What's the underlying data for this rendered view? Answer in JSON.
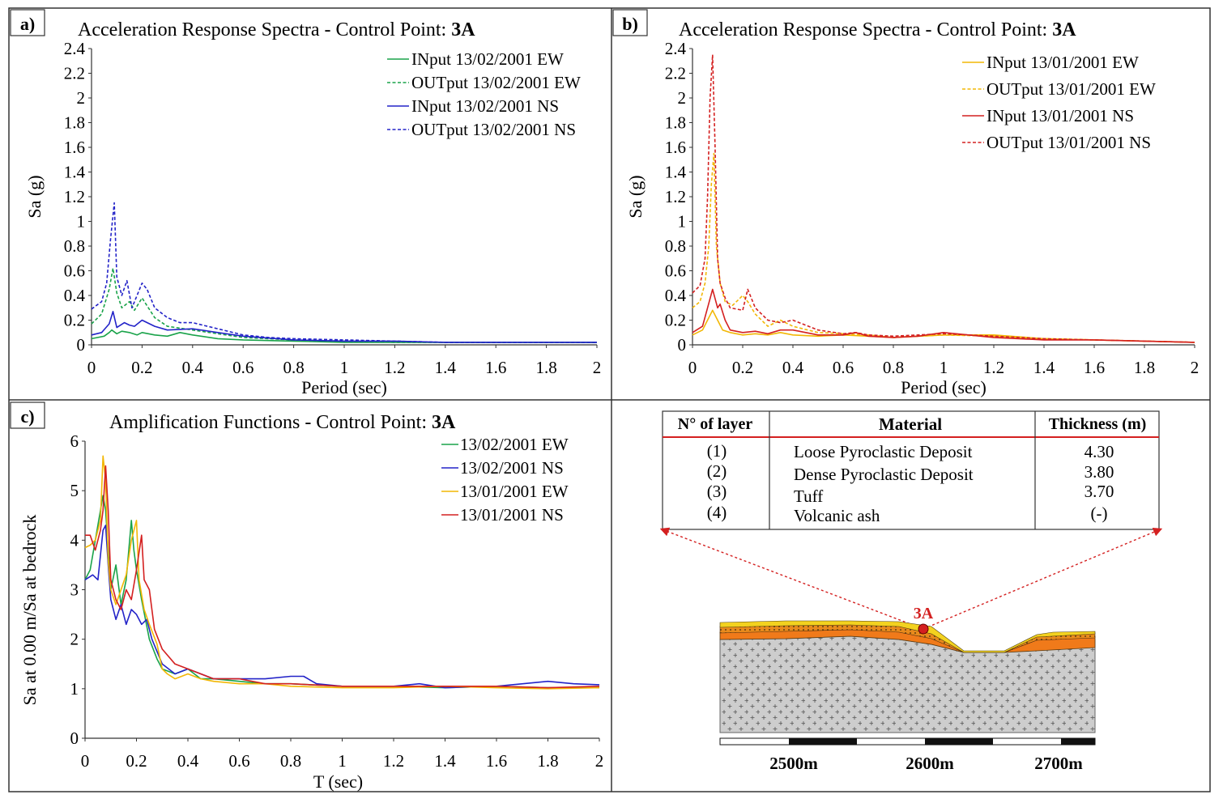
{
  "panels": {
    "a": {
      "letter": "a)",
      "title": "Acceleration Response Spectra - Control Point:",
      "title_bold": "3A"
    },
    "b": {
      "letter": "b)",
      "title": "Acceleration Response Spectra - Control Point:",
      "title_bold": "3A"
    },
    "c": {
      "letter": "c)",
      "title": "Amplification Functions - Control Point:",
      "title_bold": "3A"
    }
  },
  "colors": {
    "green": "#1aa34a",
    "blue": "#2323c8",
    "yellow": "#f2b705",
    "red": "#d42020",
    "orange": "#f07a1a",
    "gray": "#c8c8c8"
  },
  "chart_data": [
    {
      "id": "a",
      "type": "line",
      "title": "Acceleration Response Spectra - Control Point: 3A",
      "xlabel": "Period (sec)",
      "ylabel": "Sa (g)",
      "xlim": [
        0,
        2
      ],
      "ylim": [
        0,
        2.4
      ],
      "xticks": [
        0,
        0.2,
        0.4,
        0.6,
        0.8,
        1,
        1.2,
        1.4,
        1.6,
        1.8,
        2
      ],
      "yticks": [
        0,
        0.2,
        0.4,
        0.6,
        0.8,
        1,
        1.2,
        1.4,
        1.6,
        1.8,
        2,
        2.2,
        2.4
      ],
      "legend_position": "top-right",
      "series": [
        {
          "name": "INput 13/02/2001 EW",
          "color": "#1aa34a",
          "dash": false,
          "x": [
            0,
            0.05,
            0.07,
            0.08,
            0.1,
            0.12,
            0.15,
            0.18,
            0.2,
            0.25,
            0.3,
            0.35,
            0.4,
            0.5,
            0.6,
            0.8,
            1,
            1.2,
            1.4,
            1.6,
            1.8,
            2
          ],
          "y": [
            0.05,
            0.07,
            0.1,
            0.12,
            0.09,
            0.11,
            0.1,
            0.08,
            0.1,
            0.08,
            0.07,
            0.1,
            0.08,
            0.05,
            0.04,
            0.03,
            0.02,
            0.02,
            0.02,
            0.02,
            0.02,
            0.02
          ]
        },
        {
          "name": "OUTput 13/02/2001 EW",
          "color": "#1aa34a",
          "dash": true,
          "x": [
            0,
            0.04,
            0.07,
            0.085,
            0.1,
            0.12,
            0.15,
            0.17,
            0.2,
            0.25,
            0.3,
            0.4,
            0.5,
            0.6,
            0.8,
            1,
            1.2,
            1.4,
            1.6,
            1.8,
            2
          ],
          "y": [
            0.17,
            0.25,
            0.45,
            0.62,
            0.42,
            0.3,
            0.35,
            0.28,
            0.38,
            0.22,
            0.15,
            0.12,
            0.09,
            0.06,
            0.04,
            0.03,
            0.02,
            0.02,
            0.02,
            0.02,
            0.02
          ]
        },
        {
          "name": "INput 13/02/2001 NS",
          "color": "#2323c8",
          "dash": false,
          "x": [
            0,
            0.04,
            0.07,
            0.085,
            0.1,
            0.13,
            0.15,
            0.17,
            0.2,
            0.25,
            0.3,
            0.4,
            0.5,
            0.6,
            0.8,
            1,
            1.1,
            1.2,
            1.4,
            1.6,
            1.8,
            2
          ],
          "y": [
            0.08,
            0.1,
            0.17,
            0.27,
            0.14,
            0.18,
            0.16,
            0.15,
            0.2,
            0.15,
            0.12,
            0.13,
            0.1,
            0.07,
            0.04,
            0.03,
            0.03,
            0.03,
            0.02,
            0.02,
            0.02,
            0.02
          ]
        },
        {
          "name": "OUTput 13/02/2001 NS",
          "color": "#2323c8",
          "dash": true,
          "x": [
            0,
            0.04,
            0.06,
            0.075,
            0.09,
            0.1,
            0.12,
            0.14,
            0.16,
            0.18,
            0.2,
            0.22,
            0.25,
            0.3,
            0.35,
            0.4,
            0.5,
            0.6,
            0.7,
            0.8,
            1,
            1.2,
            1.4,
            1.6,
            1.8,
            2
          ],
          "y": [
            0.29,
            0.35,
            0.5,
            0.85,
            1.15,
            0.55,
            0.4,
            0.52,
            0.3,
            0.4,
            0.5,
            0.45,
            0.3,
            0.22,
            0.18,
            0.18,
            0.13,
            0.08,
            0.06,
            0.05,
            0.04,
            0.03,
            0.02,
            0.02,
            0.02,
            0.02
          ]
        }
      ]
    },
    {
      "id": "b",
      "type": "line",
      "title": "Acceleration Response Spectra - Control Point: 3A",
      "xlabel": "Period (sec)",
      "ylabel": "Sa (g)",
      "xlim": [
        0,
        2
      ],
      "ylim": [
        0,
        2.4
      ],
      "xticks": [
        0,
        0.2,
        0.4,
        0.6,
        0.8,
        1,
        1.2,
        1.4,
        1.6,
        1.8,
        2
      ],
      "yticks": [
        0,
        0.2,
        0.4,
        0.6,
        0.8,
        1,
        1.2,
        1.4,
        1.6,
        1.8,
        2,
        2.2,
        2.4
      ],
      "legend_position": "top-right",
      "series": [
        {
          "name": "INput 13/01/2001 EW",
          "color": "#f2b705",
          "dash": false,
          "x": [
            0,
            0.04,
            0.06,
            0.08,
            0.1,
            0.12,
            0.15,
            0.2,
            0.25,
            0.3,
            0.35,
            0.4,
            0.5,
            0.6,
            0.7,
            0.8,
            1,
            1.2,
            1.4,
            1.6,
            1.8,
            2
          ],
          "y": [
            0.08,
            0.12,
            0.2,
            0.28,
            0.2,
            0.12,
            0.1,
            0.08,
            0.09,
            0.08,
            0.1,
            0.08,
            0.07,
            0.08,
            0.07,
            0.06,
            0.08,
            0.08,
            0.05,
            0.04,
            0.03,
            0.02
          ]
        },
        {
          "name": "OUTput 13/01/2001 EW",
          "color": "#f2b705",
          "dash": true,
          "x": [
            0,
            0.03,
            0.05,
            0.065,
            0.075,
            0.085,
            0.095,
            0.11,
            0.13,
            0.16,
            0.2,
            0.22,
            0.25,
            0.3,
            0.35,
            0.4,
            0.5,
            0.6,
            0.7,
            0.8,
            1,
            1.2,
            1.4,
            1.6,
            1.8,
            2
          ],
          "y": [
            0.3,
            0.35,
            0.5,
            0.8,
            1.3,
            1.55,
            0.8,
            0.5,
            0.35,
            0.32,
            0.4,
            0.35,
            0.25,
            0.15,
            0.2,
            0.15,
            0.1,
            0.09,
            0.08,
            0.06,
            0.08,
            0.07,
            0.05,
            0.04,
            0.03,
            0.02
          ]
        },
        {
          "name": "INput 13/01/2001 NS",
          "color": "#d42020",
          "dash": false,
          "x": [
            0,
            0.04,
            0.06,
            0.08,
            0.1,
            0.11,
            0.13,
            0.15,
            0.2,
            0.25,
            0.3,
            0.35,
            0.4,
            0.5,
            0.6,
            0.65,
            0.7,
            0.8,
            0.9,
            1,
            1.1,
            1.2,
            1.4,
            1.6,
            1.8,
            2
          ],
          "y": [
            0.1,
            0.15,
            0.3,
            0.45,
            0.3,
            0.33,
            0.2,
            0.12,
            0.1,
            0.11,
            0.09,
            0.12,
            0.12,
            0.08,
            0.08,
            0.1,
            0.07,
            0.06,
            0.07,
            0.1,
            0.08,
            0.06,
            0.04,
            0.04,
            0.03,
            0.02
          ]
        },
        {
          "name": "OUTput 13/01/2001 NS",
          "color": "#d42020",
          "dash": true,
          "x": [
            0,
            0.03,
            0.05,
            0.06,
            0.07,
            0.08,
            0.09,
            0.1,
            0.11,
            0.13,
            0.15,
            0.2,
            0.22,
            0.25,
            0.3,
            0.35,
            0.4,
            0.5,
            0.6,
            0.65,
            0.7,
            0.8,
            1,
            1.2,
            1.4,
            1.6,
            1.8,
            2
          ],
          "y": [
            0.42,
            0.48,
            0.7,
            1.2,
            2.0,
            2.35,
            1.6,
            0.7,
            0.5,
            0.38,
            0.3,
            0.28,
            0.45,
            0.3,
            0.2,
            0.18,
            0.2,
            0.12,
            0.09,
            0.1,
            0.08,
            0.07,
            0.09,
            0.07,
            0.05,
            0.04,
            0.03,
            0.02
          ]
        }
      ]
    },
    {
      "id": "c",
      "type": "line",
      "title": "Amplification Functions - Control Point: 3A",
      "xlabel": "T (sec)",
      "ylabel": "Sa at 0.00 m/Sa at bedrock",
      "xlim": [
        0,
        2
      ],
      "ylim": [
        0,
        6
      ],
      "xticks": [
        0,
        0.2,
        0.4,
        0.6,
        0.8,
        1,
        1.2,
        1.4,
        1.6,
        1.8,
        2
      ],
      "yticks": [
        0,
        1,
        2,
        3,
        4,
        5,
        6
      ],
      "legend_position": "top-right",
      "series": [
        {
          "name": "13/02/2001 EW",
          "color": "#1aa34a",
          "dash": false,
          "x": [
            0,
            0.02,
            0.04,
            0.06,
            0.07,
            0.08,
            0.09,
            0.1,
            0.12,
            0.14,
            0.16,
            0.18,
            0.19,
            0.2,
            0.22,
            0.25,
            0.28,
            0.3,
            0.35,
            0.4,
            0.45,
            0.5,
            0.6,
            0.7,
            0.8,
            1,
            1.2,
            1.4,
            1.6,
            1.8,
            2
          ],
          "y": [
            3.2,
            3.4,
            4.0,
            4.6,
            4.9,
            4.6,
            3.8,
            3.0,
            3.5,
            2.7,
            3.2,
            4.4,
            3.8,
            3.4,
            2.8,
            2.0,
            1.6,
            1.4,
            1.3,
            1.4,
            1.2,
            1.2,
            1.15,
            1.1,
            1.1,
            1.05,
            1.05,
            1.02,
            1.05,
            1.02,
            1.02
          ]
        },
        {
          "name": "13/02/2001 NS",
          "color": "#2323c8",
          "dash": false,
          "x": [
            0,
            0.03,
            0.05,
            0.07,
            0.08,
            0.09,
            0.1,
            0.12,
            0.14,
            0.16,
            0.18,
            0.2,
            0.22,
            0.24,
            0.26,
            0.3,
            0.35,
            0.4,
            0.45,
            0.5,
            0.6,
            0.7,
            0.8,
            0.85,
            0.9,
            1,
            1.2,
            1.3,
            1.4,
            1.6,
            1.8,
            1.9,
            2
          ],
          "y": [
            3.2,
            3.3,
            3.2,
            4.2,
            4.3,
            3.5,
            2.8,
            2.4,
            2.7,
            2.3,
            2.6,
            2.5,
            2.3,
            2.4,
            2.0,
            1.5,
            1.3,
            1.4,
            1.3,
            1.2,
            1.2,
            1.2,
            1.25,
            1.25,
            1.1,
            1.05,
            1.05,
            1.1,
            1.02,
            1.05,
            1.15,
            1.1,
            1.08
          ]
        },
        {
          "name": "13/01/2001 EW",
          "color": "#f2b705",
          "dash": false,
          "x": [
            0,
            0.02,
            0.04,
            0.06,
            0.07,
            0.08,
            0.09,
            0.1,
            0.12,
            0.14,
            0.16,
            0.18,
            0.2,
            0.21,
            0.23,
            0.25,
            0.28,
            0.3,
            0.32,
            0.35,
            0.4,
            0.45,
            0.5,
            0.6,
            0.7,
            0.8,
            1,
            1.2,
            1.4,
            1.6,
            1.8,
            2
          ],
          "y": [
            3.85,
            3.9,
            4.0,
            4.4,
            5.7,
            5.2,
            3.6,
            3.0,
            2.7,
            3.0,
            3.3,
            4.0,
            4.4,
            3.2,
            2.6,
            2.3,
            1.9,
            1.4,
            1.3,
            1.2,
            1.3,
            1.2,
            1.15,
            1.1,
            1.1,
            1.05,
            1.02,
            1.02,
            1.05,
            1.02,
            1.0,
            1.02
          ]
        },
        {
          "name": "13/01/2001 NS",
          "color": "#d42020",
          "dash": false,
          "x": [
            0,
            0.02,
            0.04,
            0.06,
            0.07,
            0.08,
            0.09,
            0.1,
            0.12,
            0.14,
            0.16,
            0.18,
            0.2,
            0.22,
            0.23,
            0.25,
            0.27,
            0.3,
            0.35,
            0.4,
            0.45,
            0.5,
            0.6,
            0.7,
            0.8,
            1,
            1.2,
            1.4,
            1.6,
            1.8,
            2
          ],
          "y": [
            4.1,
            4.1,
            3.8,
            4.2,
            4.6,
            5.5,
            4.6,
            3.2,
            2.8,
            2.6,
            3.0,
            2.8,
            3.4,
            4.1,
            3.2,
            3.0,
            2.2,
            1.8,
            1.5,
            1.4,
            1.3,
            1.2,
            1.2,
            1.1,
            1.1,
            1.05,
            1.05,
            1.05,
            1.05,
            1.02,
            1.05
          ]
        }
      ]
    }
  ],
  "layer_table": {
    "headers": [
      "N° of layer",
      "Material",
      "Thickness (m)"
    ],
    "rows": [
      {
        "n": "(1)",
        "material": "Loose Pyroclastic Deposit",
        "thickness": "4.30"
      },
      {
        "n": "(2)",
        "material": "Dense Pyroclastic Deposit",
        "thickness": "3.80"
      },
      {
        "n": "(3)",
        "material": "Tuff",
        "thickness": "3.70"
      },
      {
        "n": "(4)",
        "material": "Volcanic ash",
        "thickness": "(-)"
      }
    ]
  },
  "cross_section": {
    "point_label": "3A",
    "scale_labels": [
      "2500m",
      "2600m",
      "2700m"
    ]
  }
}
